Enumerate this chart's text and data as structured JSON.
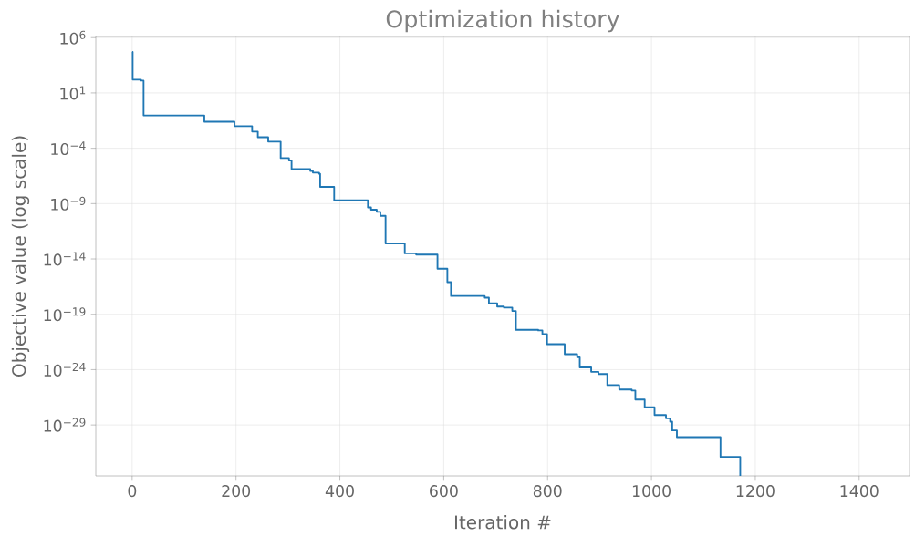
{
  "chart_data": {
    "type": "step",
    "title": "Optimization history",
    "xlabel": "Iteration #",
    "ylabel": "Objective value (log scale)",
    "log": "y",
    "grid": true,
    "xlim": [
      -70,
      1497
    ],
    "ylim": [
      2.5e-34,
      1260000.0
    ],
    "xticks": [
      0,
      200,
      400,
      600,
      800,
      1000,
      1200,
      1400
    ],
    "yticks": [
      {
        "value": 1000000.0,
        "label": "10$^{6}$"
      },
      {
        "value": 10.0,
        "label": "10$^{1}$"
      },
      {
        "value": 0.0001,
        "label": "10$^{−4}$"
      },
      {
        "value": 1e-09,
        "label": "10$^{−9}$"
      },
      {
        "value": 1e-14,
        "label": "10$^{−14}$"
      },
      {
        "value": 1e-19,
        "label": "10$^{−19}$"
      },
      {
        "value": 1e-24,
        "label": "10$^{−24}$"
      },
      {
        "value": 1e-29,
        "label": "10$^{−29}$"
      }
    ],
    "x": [
      0,
      1,
      17,
      22,
      139,
      197,
      231,
      242,
      262,
      286,
      302,
      307,
      343,
      348,
      360,
      362,
      389,
      454,
      460,
      471,
      478,
      488,
      525,
      547,
      588,
      607,
      614,
      679,
      687,
      703,
      716,
      732,
      739,
      782,
      790,
      799,
      833,
      857,
      862,
      884,
      898,
      915,
      938,
      962,
      969,
      987,
      1006,
      1028,
      1036,
      1040,
      1049,
      1133,
      1171
    ],
    "series": [
      {
        "color": "#1f77b4",
        "values": [
          50000.0,
          160.0,
          130.0,
          0.093,
          0.025,
          0.01,
          0.0032,
          0.001,
          0.0004,
          1.3e-05,
          7.9e-06,
          1.3e-06,
          8.9e-07,
          6.3e-07,
          5e-07,
          3.2e-08,
          2e-09,
          4.5e-10,
          2.8e-10,
          1.8e-10,
          7.9e-11,
          2.5e-13,
          3.2e-14,
          2.5e-14,
          1.3e-15,
          7.9e-17,
          4.5e-18,
          3.2e-18,
          1e-18,
          5e-19,
          4e-19,
          2e-19,
          4e-21,
          3.5e-21,
          1.6e-21,
          2e-22,
          2.5e-23,
          1.3e-23,
          1.6e-24,
          6.3e-25,
          4e-25,
          4e-26,
          1.6e-26,
          1.3e-26,
          2e-27,
          4e-28,
          7.9e-29,
          4e-29,
          2e-29,
          3.2e-30,
          7.9e-31,
          1.3e-32,
          2.5e-34
        ]
      }
    ]
  }
}
